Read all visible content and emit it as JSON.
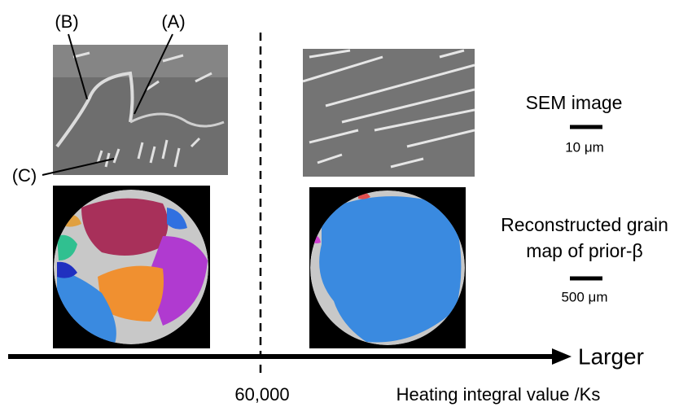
{
  "annotations": {
    "b": "(B)",
    "a": "(A)",
    "c": "(C)"
  },
  "sem_legend": {
    "title": "SEM image",
    "scale": "10 μm"
  },
  "grain_legend": {
    "title_line1": "Reconstructed grain",
    "title_line2": "map of prior-β",
    "scale": "500 μm"
  },
  "axis": {
    "arrow_label": "Larger",
    "threshold": "60,000",
    "title": "Heating integral value /Ks"
  }
}
